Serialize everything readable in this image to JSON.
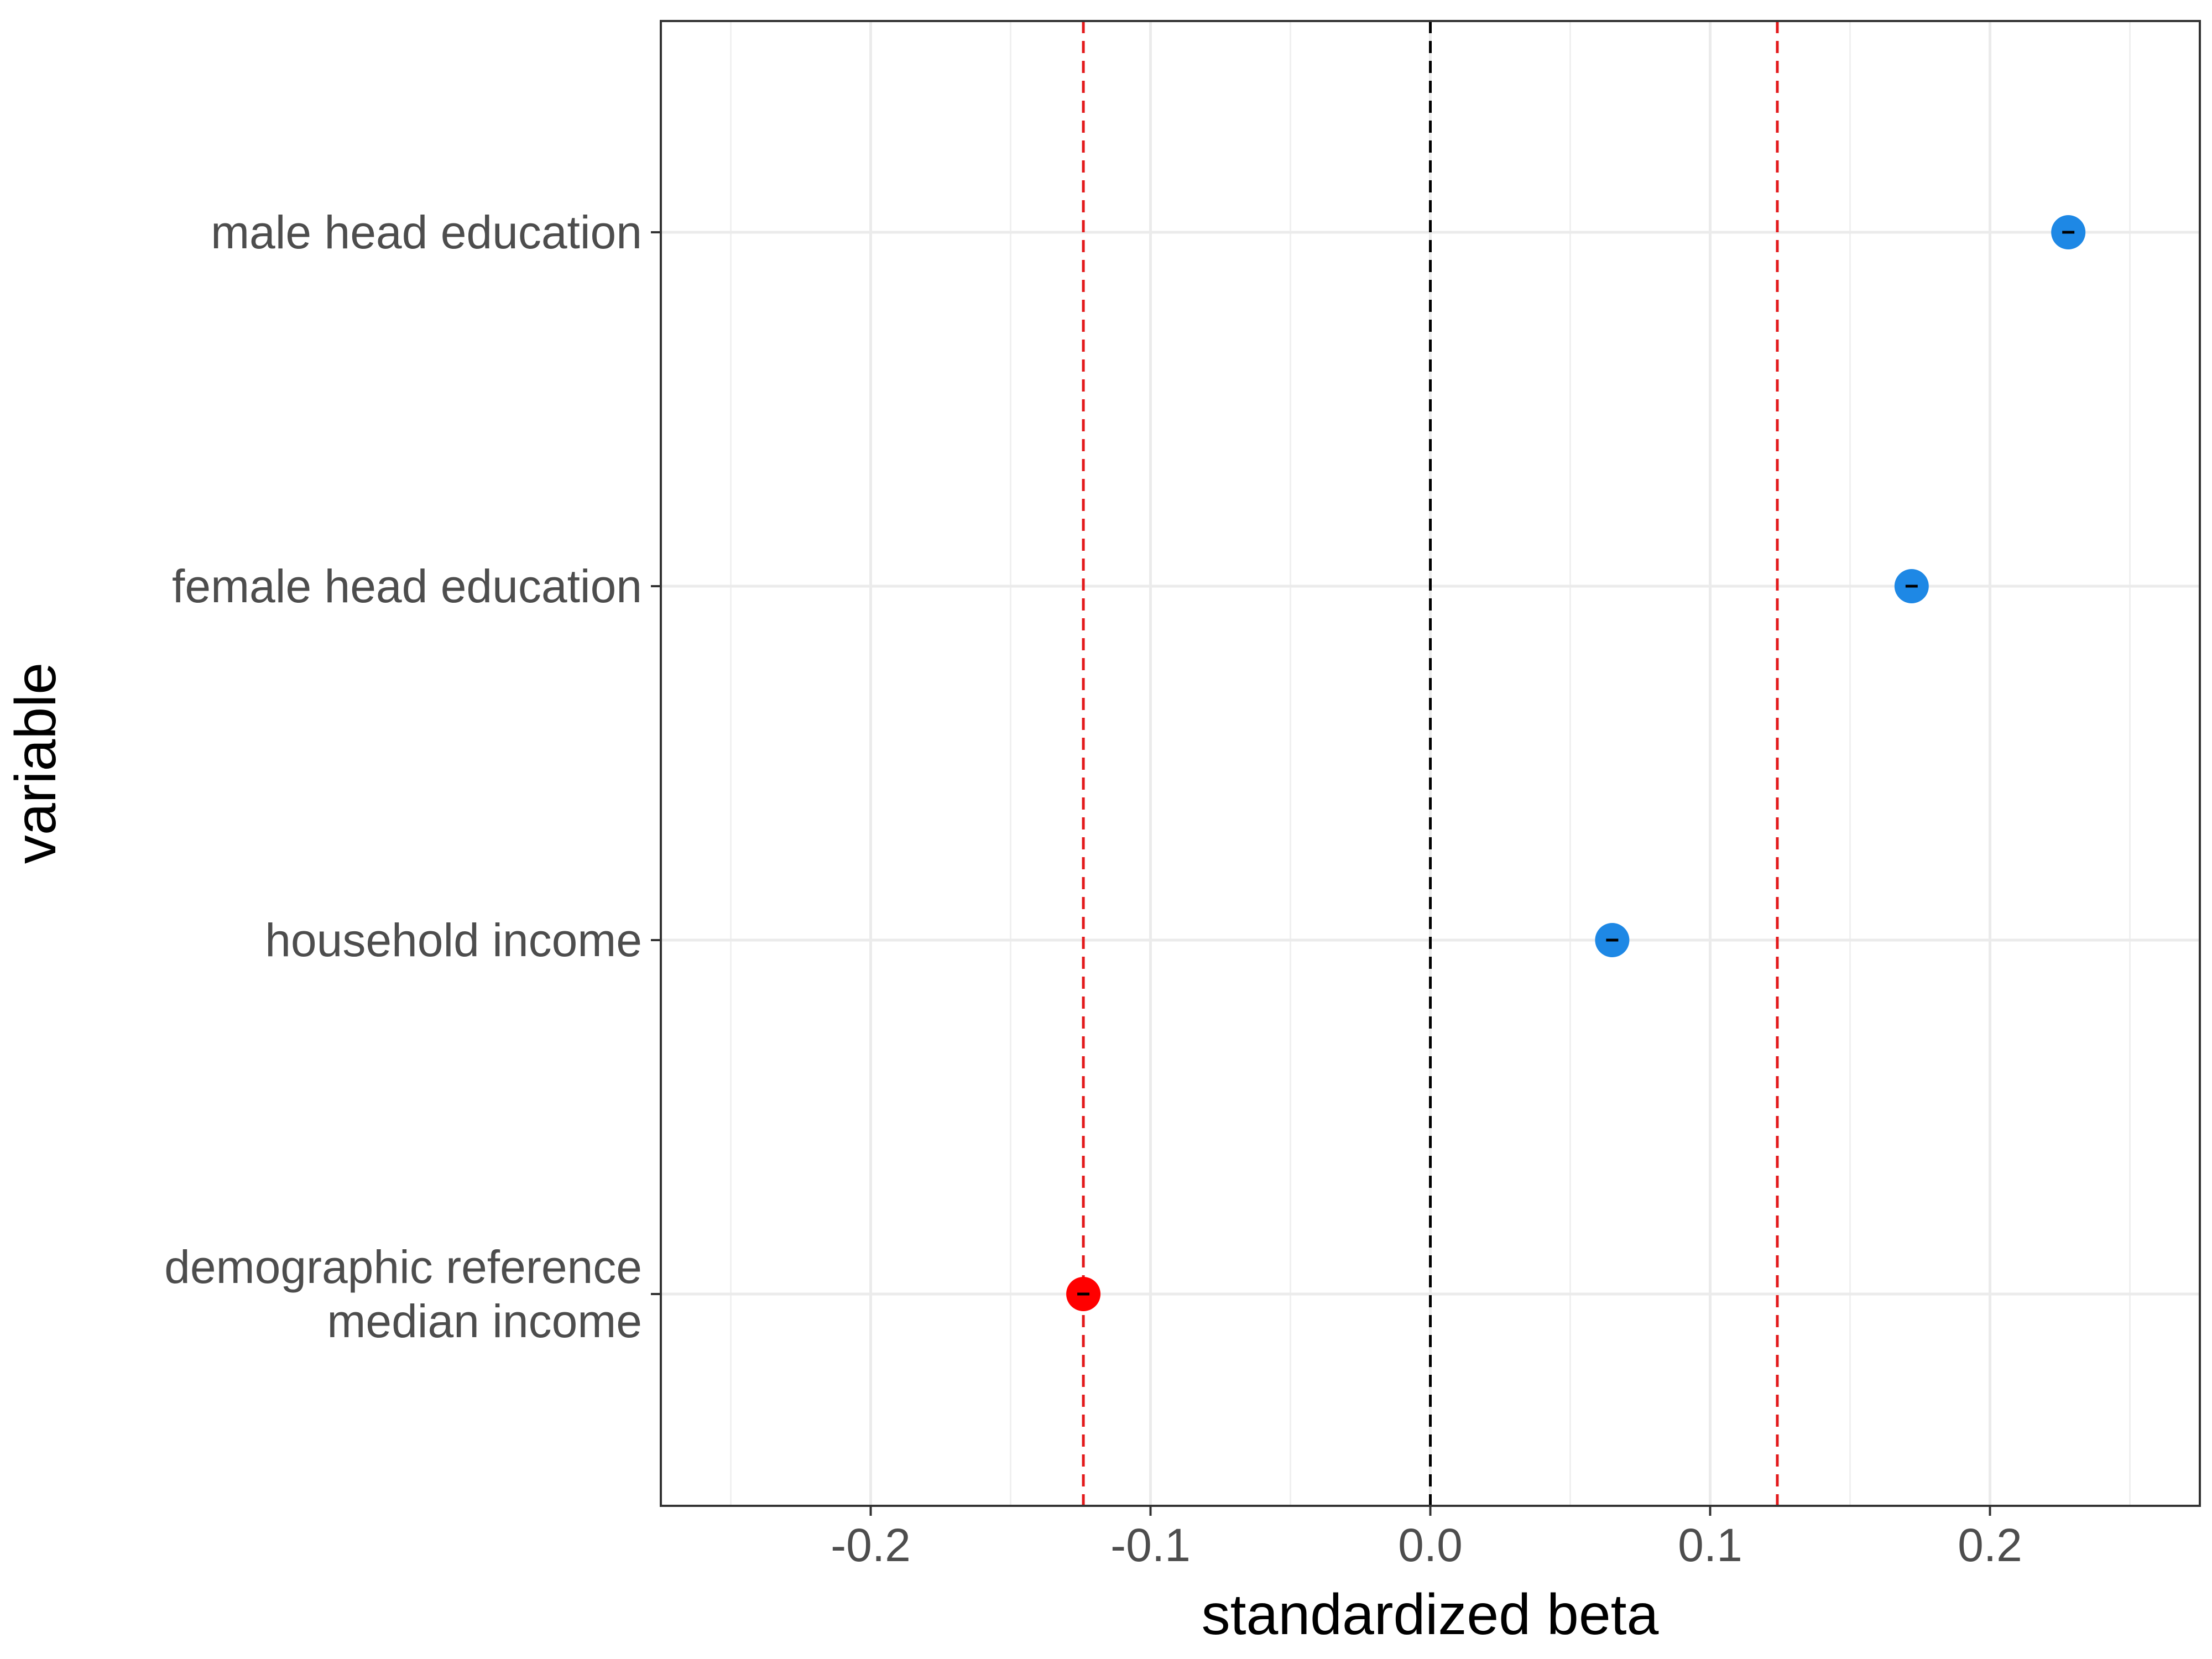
{
  "chart_data": {
    "type": "scatter",
    "xlabel": "standardized beta",
    "ylabel": "variable",
    "xlim": [
      -0.275,
      0.275
    ],
    "x_ticks": [
      -0.2,
      -0.1,
      0.0,
      0.1,
      0.2
    ],
    "x_tick_labels": [
      "-0.2",
      "-0.1",
      "0.0",
      "0.1",
      "0.2"
    ],
    "x_minor_ticks": [
      -0.25,
      -0.15,
      -0.05,
      0.05,
      0.15,
      0.25
    ],
    "categories": [
      "male head education",
      "female head education",
      "household income",
      "demographic reference\nmedian income"
    ],
    "points": [
      {
        "category": "male head education",
        "value": 0.228,
        "color": "#1e88e5"
      },
      {
        "category": "female head education",
        "value": 0.172,
        "color": "#1e88e5"
      },
      {
        "category": "household income",
        "value": 0.065,
        "color": "#1e88e5"
      },
      {
        "category": "demographic reference\nmedian income",
        "value": -0.124,
        "color": "#ff0000"
      }
    ],
    "reference_lines": [
      {
        "x": 0.0,
        "color": "#000000",
        "style": "dashed"
      },
      {
        "x": -0.124,
        "color": "#e31a1c",
        "style": "dashed"
      },
      {
        "x": 0.124,
        "color": "#e31a1c",
        "style": "dashed"
      }
    ],
    "grid": true,
    "legend": "none"
  }
}
